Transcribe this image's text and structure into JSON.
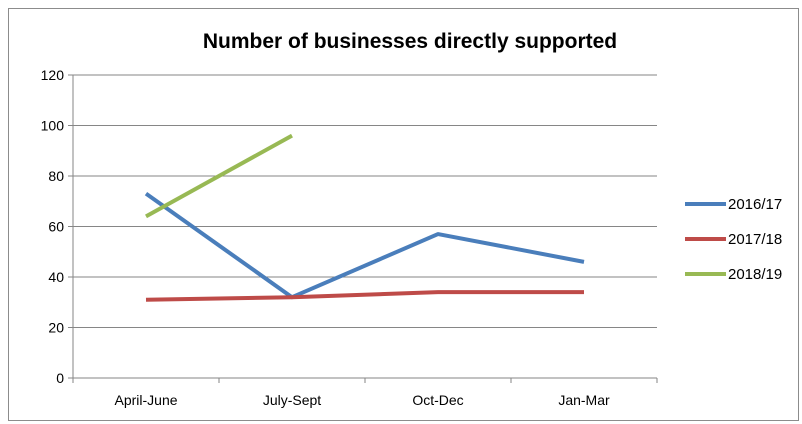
{
  "chart_data": {
    "type": "line",
    "title": "Number of businesses directly supported",
    "xlabel": "",
    "ylabel": "",
    "categories": [
      "April-June",
      "July-Sept",
      "Oct-Dec",
      "Jan-Mar"
    ],
    "ylim": [
      0,
      120
    ],
    "yticks": [
      0,
      20,
      40,
      60,
      80,
      100,
      120
    ],
    "grid": true,
    "legend_position": "right",
    "series": [
      {
        "name": "2016/17",
        "color": "#4a7ebb",
        "values": [
          73,
          32,
          57,
          46
        ]
      },
      {
        "name": "2017/18",
        "color": "#be4b48",
        "values": [
          31,
          32,
          34,
          34
        ]
      },
      {
        "name": "2018/19",
        "color": "#98b954",
        "values": [
          64,
          96,
          null,
          null
        ]
      }
    ]
  }
}
